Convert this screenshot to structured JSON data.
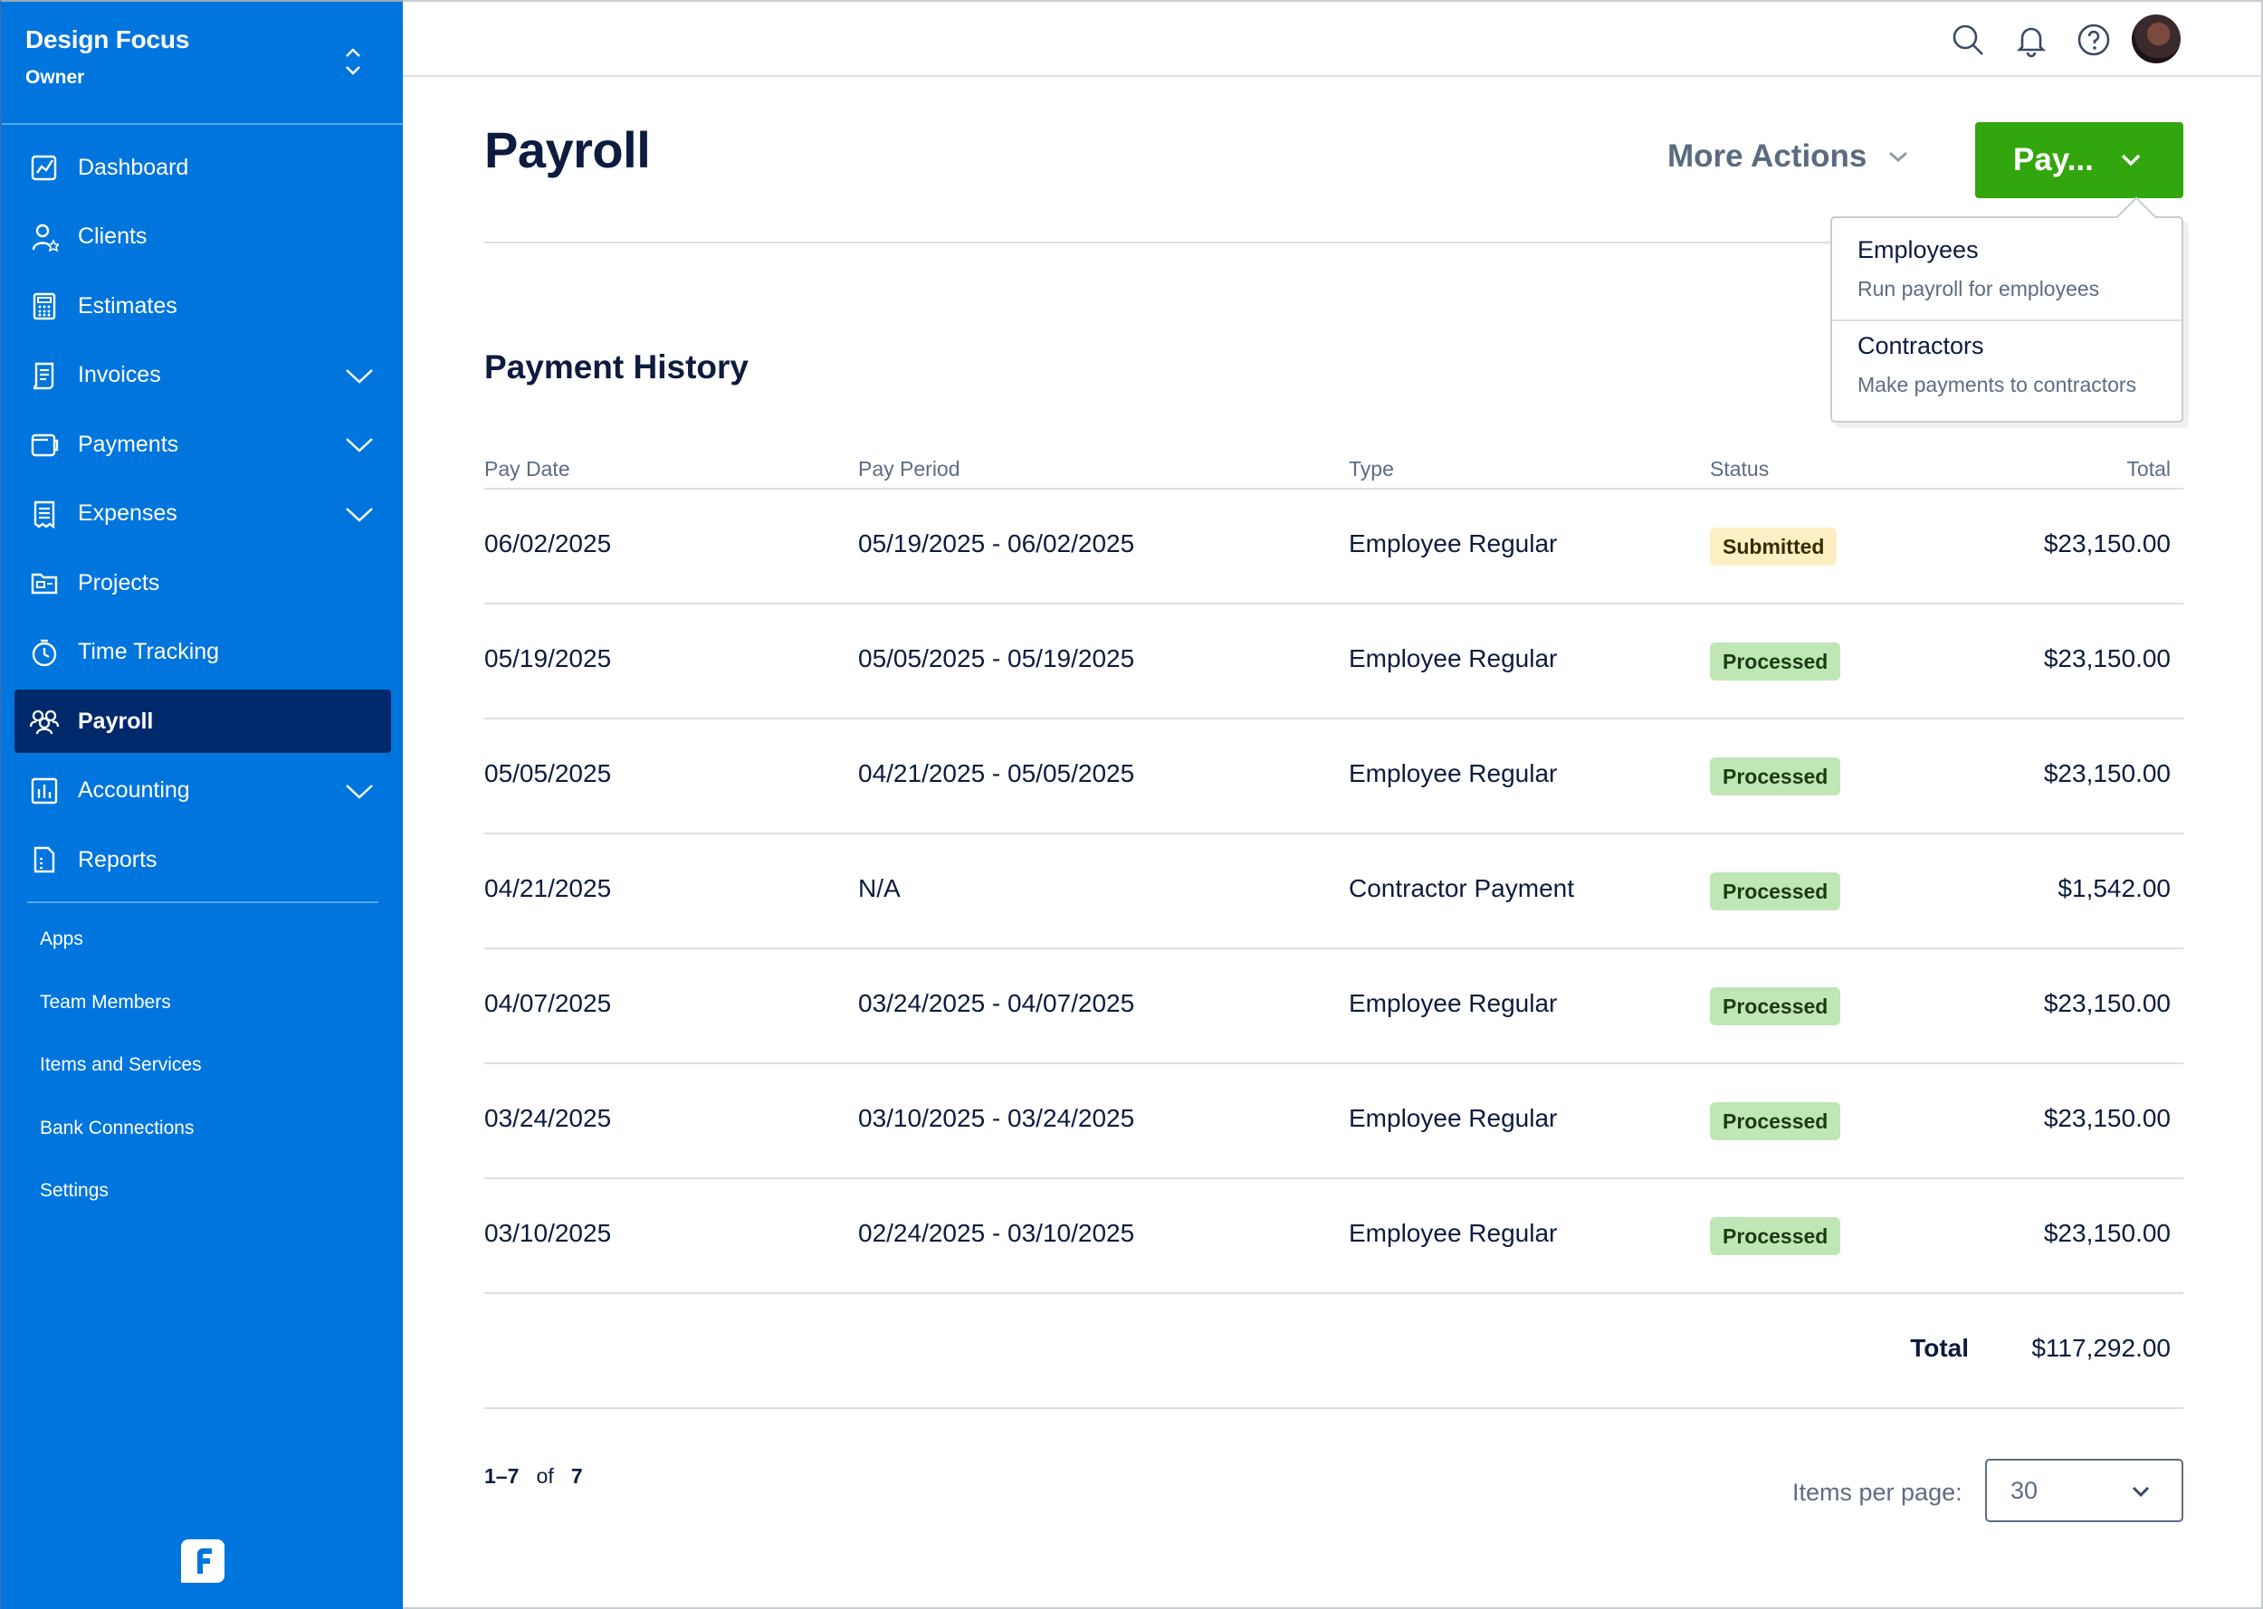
{
  "sidebar": {
    "business_name": "Design Focus",
    "role": "Owner",
    "nav": [
      {
        "label": "Dashboard",
        "icon": "chart-line-icon",
        "expandable": false
      },
      {
        "label": "Clients",
        "icon": "person-star-icon",
        "expandable": false
      },
      {
        "label": "Estimates",
        "icon": "calculator-icon",
        "expandable": false
      },
      {
        "label": "Invoices",
        "icon": "document-icon",
        "expandable": true
      },
      {
        "label": "Payments",
        "icon": "wallet-icon",
        "expandable": true
      },
      {
        "label": "Expenses",
        "icon": "receipt-icon",
        "expandable": true
      },
      {
        "label": "Projects",
        "icon": "folder-icon",
        "expandable": false
      },
      {
        "label": "Time Tracking",
        "icon": "stopwatch-icon",
        "expandable": false
      },
      {
        "label": "Payroll",
        "icon": "people-icon",
        "expandable": false,
        "active": true
      },
      {
        "label": "Accounting",
        "icon": "bar-chart-icon",
        "expandable": true
      },
      {
        "label": "Reports",
        "icon": "report-icon",
        "expandable": false
      }
    ],
    "subnav": [
      "Apps",
      "Team Members",
      "Items and Services",
      "Bank Connections",
      "Settings"
    ]
  },
  "topbar": {
    "icons": [
      "search-icon",
      "bell-icon",
      "help-icon",
      "avatar"
    ]
  },
  "main": {
    "title": "Payroll",
    "more_actions": "More Actions",
    "pay_button": "Pay...",
    "dropdown": [
      {
        "title": "Employees",
        "subtitle": "Run payroll for employees"
      },
      {
        "title": "Contractors",
        "subtitle": "Make payments to contractors"
      }
    ],
    "section_title": "Payment History",
    "columns": [
      "Pay Date",
      "Pay Period",
      "Type",
      "Status",
      "Total"
    ],
    "rows": [
      {
        "pay_date": "06/02/2025",
        "pay_period": "05/19/2025 - 06/02/2025",
        "type": "Employee Regular",
        "status": "Submitted",
        "total": "$23,150.00"
      },
      {
        "pay_date": "05/19/2025",
        "pay_period": "05/05/2025 - 05/19/2025",
        "type": "Employee Regular",
        "status": "Processed",
        "total": "$23,150.00"
      },
      {
        "pay_date": "05/05/2025",
        "pay_period": "04/21/2025 - 05/05/2025",
        "type": "Employee Regular",
        "status": "Processed",
        "total": "$23,150.00"
      },
      {
        "pay_date": "04/21/2025",
        "pay_period": "N/A",
        "type": "Contractor Payment",
        "status": "Processed",
        "total": "$1,542.00"
      },
      {
        "pay_date": "04/07/2025",
        "pay_period": "03/24/2025 - 04/07/2025",
        "type": "Employee Regular",
        "status": "Processed",
        "total": "$23,150.00"
      },
      {
        "pay_date": "03/24/2025",
        "pay_period": "03/10/2025 - 03/24/2025",
        "type": "Employee Regular",
        "status": "Processed",
        "total": "$23,150.00"
      },
      {
        "pay_date": "03/10/2025",
        "pay_period": "02/24/2025 - 03/10/2025",
        "type": "Employee Regular",
        "status": "Processed",
        "total": "$23,150.00"
      }
    ],
    "total_label": "Total",
    "total_value": "$117,292.00",
    "pager": {
      "range": "1–7",
      "of": "of",
      "count": "7"
    },
    "items_per_page_label": "Items per page:",
    "items_per_page_value": "30"
  },
  "colors": {
    "sidebar_bg": "#0075dd",
    "sidebar_active": "#00296b",
    "pay_button": "#32a60d",
    "badge_submitted": "#fdefc4",
    "badge_processed": "#bfe6b5"
  }
}
